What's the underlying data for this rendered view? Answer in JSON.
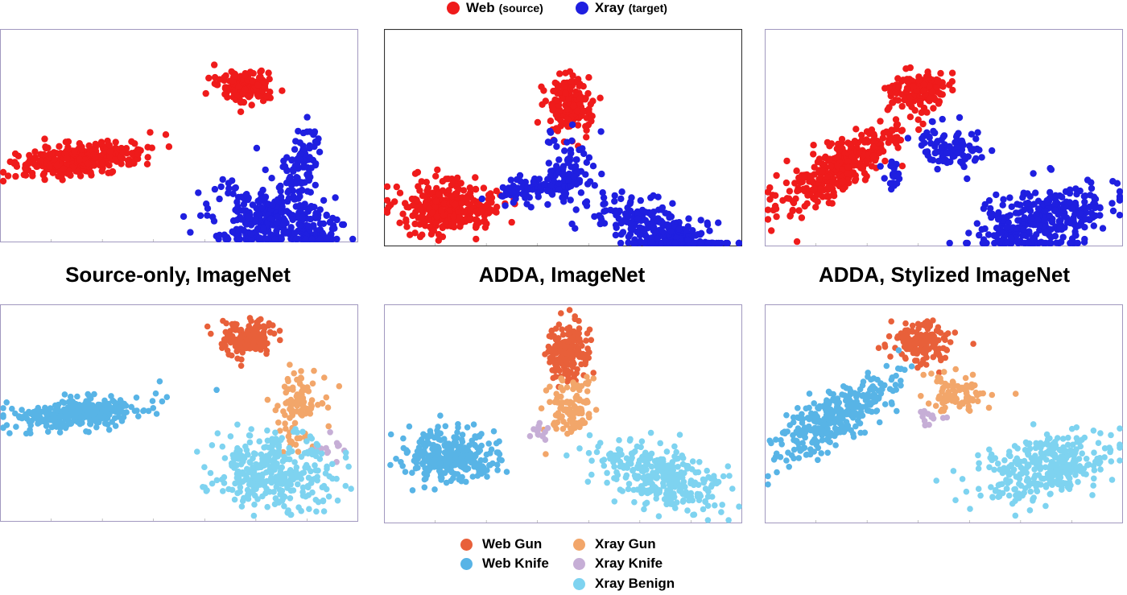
{
  "top_legend": {
    "items": [
      {
        "label": "Web",
        "note": "(source)",
        "color": "#ef1b1b"
      },
      {
        "label": "Xray",
        "note": "(target)",
        "color": "#1f1fe0"
      }
    ]
  },
  "method_titles": [
    "Source-only, ImageNet",
    "ADDA, ImageNet",
    "ADDA, Stylized ImageNet"
  ],
  "bottom_legend": {
    "items": [
      {
        "label": "Web Gun",
        "color": "#e8603a"
      },
      {
        "label": "Xray Gun",
        "color": "#f2a66a"
      },
      {
        "label": "Web Knife",
        "color": "#58b4e6"
      },
      {
        "label": "Xray Knife",
        "color": "#c6aed6"
      },
      {
        "label": "Xray Benign",
        "color": "#7ed3f0"
      }
    ]
  },
  "chart_data": [
    {
      "type": "scatter",
      "row": "domain",
      "method": "Source-only, ImageNet",
      "series": [
        {
          "name": "Web",
          "color": "#ef1b1b",
          "clusters": [
            {
              "cx": 100,
              "cy": 162,
              "sx": 40,
              "sy": 9,
              "n": 330,
              "tilt": -0.12
            },
            {
              "cx": 307,
              "cy": 70,
              "sx": 18,
              "sy": 10,
              "n": 160,
              "tilt": 0
            }
          ]
        },
        {
          "name": "Xray",
          "color": "#1f1fe0",
          "clusters": [
            {
              "cx": 330,
              "cy": 238,
              "sx": 35,
              "sy": 22,
              "n": 300,
              "tilt": 0.1
            },
            {
              "cx": 375,
              "cy": 165,
              "sx": 10,
              "sy": 25,
              "n": 90,
              "tilt": 0.2
            },
            {
              "cx": 395,
              "cy": 260,
              "sx": 14,
              "sy": 18,
              "n": 80,
              "tilt": 0
            }
          ]
        }
      ]
    },
    {
      "type": "scatter",
      "row": "domain",
      "method": "ADDA, ImageNet",
      "series": [
        {
          "name": "Web",
          "color": "#ef1b1b",
          "clusters": [
            {
              "cx": 80,
              "cy": 222,
              "sx": 30,
              "sy": 15,
              "n": 320,
              "tilt": 0
            },
            {
              "cx": 230,
              "cy": 93,
              "sx": 13,
              "sy": 18,
              "n": 170,
              "tilt": 0
            }
          ]
        },
        {
          "name": "Xray",
          "color": "#1f1fe0",
          "clusters": [
            {
              "cx": 340,
              "cy": 252,
              "sx": 40,
              "sy": 17,
              "n": 300,
              "tilt": 0.35
            },
            {
              "cx": 230,
              "cy": 175,
              "sx": 14,
              "sy": 22,
              "n": 80,
              "tilt": 0
            },
            {
              "cx": 190,
              "cy": 198,
              "sx": 30,
              "sy": 7,
              "n": 90,
              "tilt": -0.15
            }
          ]
        }
      ]
    },
    {
      "type": "scatter",
      "row": "domain",
      "method": "ADDA, Stylized ImageNet",
      "series": [
        {
          "name": "Web",
          "color": "#ef1b1b",
          "clusters": [
            {
              "cx": 90,
              "cy": 175,
              "sx": 45,
              "sy": 14,
              "n": 330,
              "tilt": -0.55
            },
            {
              "cx": 190,
              "cy": 75,
              "sx": 18,
              "sy": 12,
              "n": 150,
              "tilt": 0
            }
          ]
        },
        {
          "name": "Xray",
          "color": "#1f1fe0",
          "clusters": [
            {
              "cx": 345,
              "cy": 240,
              "sx": 42,
              "sy": 20,
              "n": 320,
              "tilt": -0.25
            },
            {
              "cx": 235,
              "cy": 148,
              "sx": 20,
              "sy": 14,
              "n": 90,
              "tilt": 0
            },
            {
              "cx": 160,
              "cy": 178,
              "sx": 8,
              "sy": 8,
              "n": 20,
              "tilt": 0
            }
          ]
        }
      ]
    },
    {
      "type": "scatter",
      "row": "class",
      "method": "Source-only, ImageNet",
      "series": [
        {
          "name": "Web Gun",
          "color": "#e8603a",
          "clusters": [
            {
              "cx": 307,
              "cy": 40,
              "sx": 18,
              "sy": 11,
              "n": 160,
              "tilt": 0
            }
          ]
        },
        {
          "name": "Xray Gun",
          "color": "#f2a66a",
          "clusters": [
            {
              "cx": 370,
              "cy": 130,
              "sx": 14,
              "sy": 22,
              "n": 100,
              "tilt": 0.2
            }
          ]
        },
        {
          "name": "Web Knife",
          "color": "#58b4e6",
          "clusters": [
            {
              "cx": 100,
              "cy": 135,
              "sx": 40,
              "sy": 9,
              "n": 330,
              "tilt": -0.12
            }
          ]
        },
        {
          "name": "Xray Knife",
          "color": "#c6aed6",
          "clusters": [
            {
              "cx": 405,
              "cy": 178,
              "sx": 12,
              "sy": 8,
              "n": 14,
              "tilt": 0
            }
          ]
        },
        {
          "name": "Xray Benign",
          "color": "#7ed3f0",
          "clusters": [
            {
              "cx": 340,
              "cy": 208,
              "sx": 38,
              "sy": 23,
              "n": 320,
              "tilt": 0.1
            }
          ]
        }
      ]
    },
    {
      "type": "scatter",
      "row": "class",
      "method": "ADDA, ImageNet",
      "series": [
        {
          "name": "Web Gun",
          "color": "#e8603a",
          "clusters": [
            {
              "cx": 228,
              "cy": 60,
              "sx": 13,
              "sy": 18,
              "n": 170,
              "tilt": 0
            }
          ]
        },
        {
          "name": "Xray Gun",
          "color": "#f2a66a",
          "clusters": [
            {
              "cx": 230,
              "cy": 130,
              "sx": 14,
              "sy": 20,
              "n": 100,
              "tilt": 0.2
            }
          ]
        },
        {
          "name": "Web Knife",
          "color": "#58b4e6",
          "clusters": [
            {
              "cx": 80,
              "cy": 188,
              "sx": 30,
              "sy": 15,
              "n": 320,
              "tilt": 0
            }
          ]
        },
        {
          "name": "Xray Knife",
          "color": "#c6aed6",
          "clusters": [
            {
              "cx": 195,
              "cy": 158,
              "sx": 8,
              "sy": 6,
              "n": 14,
              "tilt": 0
            }
          ]
        },
        {
          "name": "Xray Benign",
          "color": "#7ed3f0",
          "clusters": [
            {
              "cx": 345,
              "cy": 215,
              "sx": 40,
              "sy": 17,
              "n": 320,
              "tilt": 0.35
            }
          ]
        }
      ]
    },
    {
      "type": "scatter",
      "row": "class",
      "method": "ADDA, Stylized ImageNet",
      "series": [
        {
          "name": "Web Gun",
          "color": "#e8603a",
          "clusters": [
            {
              "cx": 195,
              "cy": 45,
              "sx": 18,
              "sy": 12,
              "n": 150,
              "tilt": 0
            }
          ]
        },
        {
          "name": "Xray Gun",
          "color": "#f2a66a",
          "clusters": [
            {
              "cx": 240,
              "cy": 110,
              "sx": 20,
              "sy": 13,
              "n": 90,
              "tilt": 0
            }
          ]
        },
        {
          "name": "Web Knife",
          "color": "#58b4e6",
          "clusters": [
            {
              "cx": 90,
              "cy": 138,
              "sx": 45,
              "sy": 14,
              "n": 330,
              "tilt": -0.55
            }
          ]
        },
        {
          "name": "Xray Knife",
          "color": "#c6aed6",
          "clusters": [
            {
              "cx": 205,
              "cy": 140,
              "sx": 12,
              "sy": 4,
              "n": 14,
              "tilt": 0
            }
          ]
        },
        {
          "name": "Xray Benign",
          "color": "#7ed3f0",
          "clusters": [
            {
              "cx": 345,
              "cy": 205,
              "sx": 42,
              "sy": 20,
              "n": 320,
              "tilt": -0.25
            }
          ]
        }
      ]
    }
  ]
}
